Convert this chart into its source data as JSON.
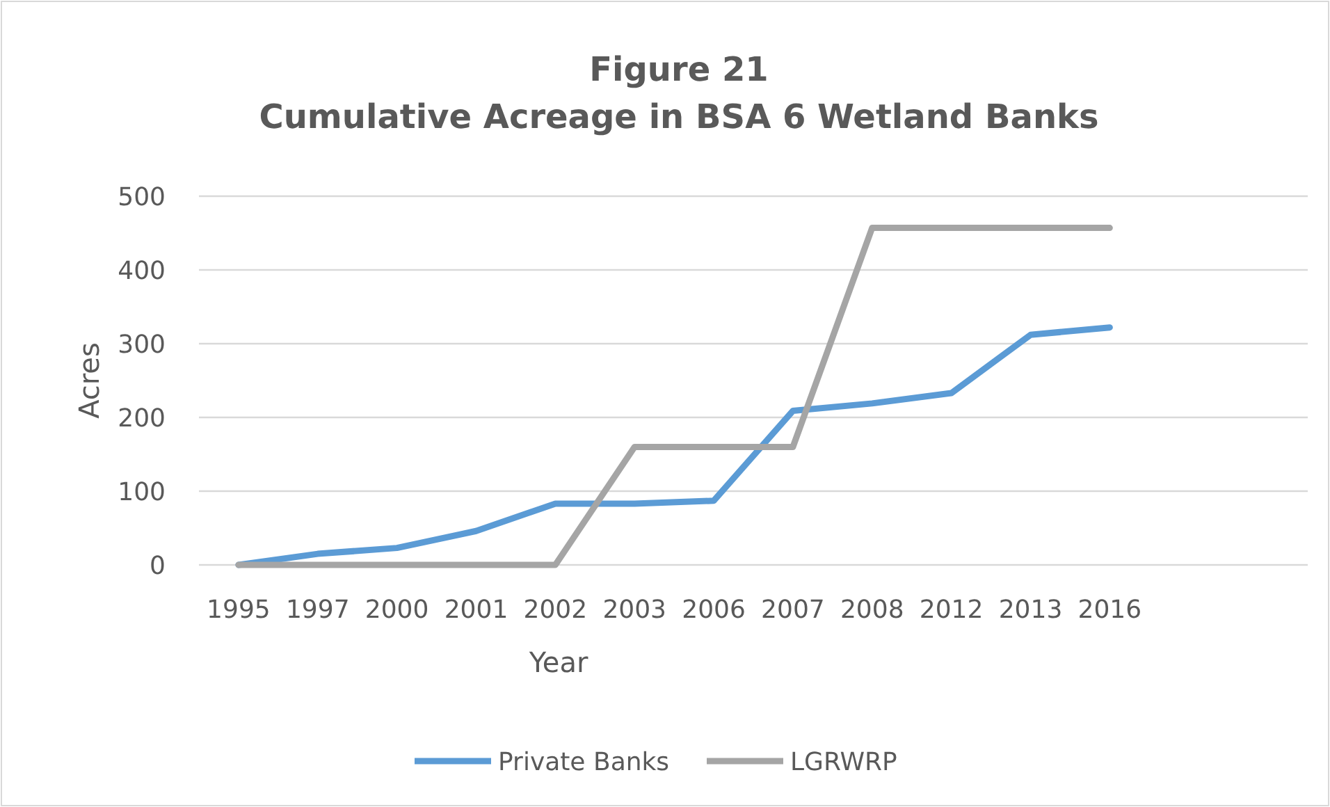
{
  "chart_data": {
    "type": "line",
    "title": "Figure 21\nCumulative Acreage in BSA 6 Wetland Banks",
    "xlabel": "Year",
    "ylabel": "Acres",
    "categories": [
      "1995",
      "1997",
      "2000",
      "2001",
      "2002",
      "2003",
      "2006",
      "2007",
      "2008",
      "2012",
      "2013",
      "2016",
      null,
      null
    ],
    "series": [
      {
        "name": "Private Banks",
        "color": "#5b9bd5",
        "values": [
          0,
          15,
          23,
          46,
          83,
          83,
          87,
          209,
          219,
          233,
          312,
          322,
          null,
          null
        ]
      },
      {
        "name": "LGRWRP",
        "color": "#a5a5a5",
        "values": [
          0,
          0,
          0,
          0,
          0,
          160,
          160,
          160,
          457,
          457,
          457,
          457,
          null,
          null
        ]
      }
    ],
    "ylim": [
      0,
      500
    ],
    "yticks": [
      0,
      100,
      200,
      300,
      400,
      500
    ],
    "grid": "y",
    "legend": "bottom",
    "marker": "none",
    "line_style": "solid"
  }
}
